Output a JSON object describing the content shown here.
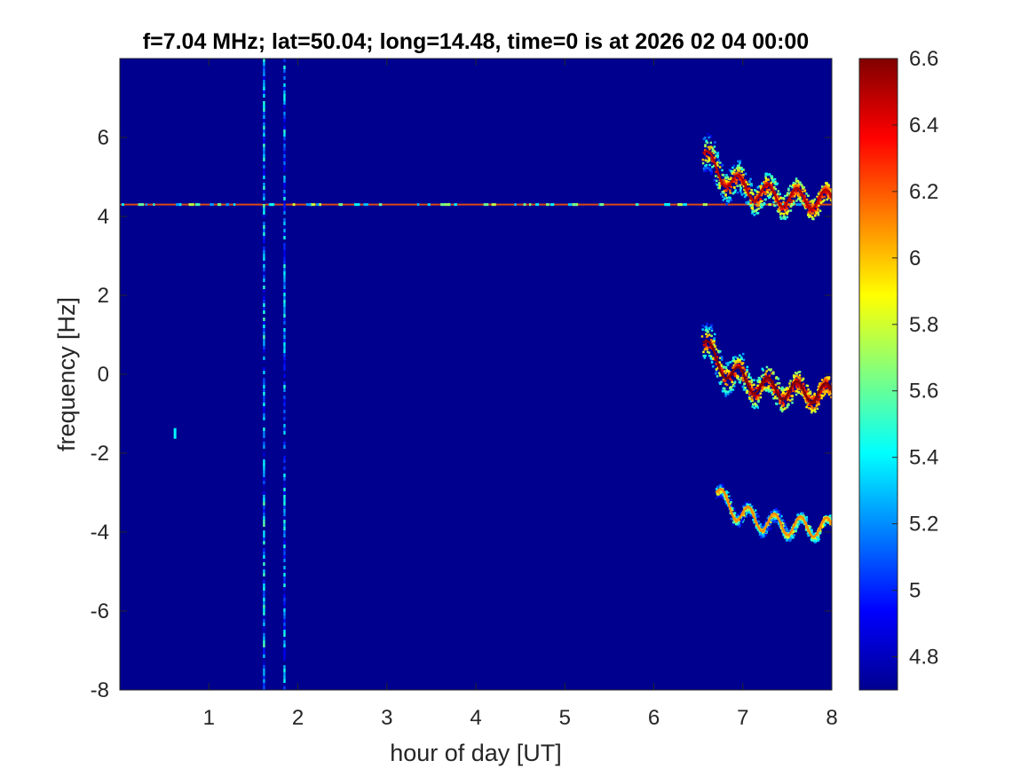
{
  "chart_data": {
    "type": "heatmap",
    "title": "f=7.04 MHz;  lat=50.04; long=14.48, time=0 is at 2026 02 04 00:00",
    "xlabel": "hour of day [UT]",
    "ylabel": "frequency [Hz]",
    "xlim": [
      0,
      8
    ],
    "ylim": [
      -8,
      8
    ],
    "x_ticks": [
      1,
      2,
      3,
      4,
      5,
      6,
      7,
      8
    ],
    "y_ticks": [
      -8,
      -6,
      -4,
      -2,
      0,
      2,
      4,
      6
    ],
    "colorbar": {
      "colormap": "jet",
      "limits": [
        4.7,
        6.6
      ],
      "ticks": [
        4.8,
        5,
        5.2,
        5.4,
        5.6,
        5.8,
        6,
        6.2,
        6.4,
        6.6
      ]
    },
    "background_value": 4.7,
    "features": [
      {
        "kind": "horizontal_line",
        "y": 4.3,
        "x_range": [
          0,
          8
        ],
        "value": 6.2
      },
      {
        "kind": "vertical_line",
        "x": 1.62,
        "y_range": [
          -8,
          8
        ],
        "value": 5.4
      },
      {
        "kind": "vertical_line",
        "x": 1.85,
        "y_range": [
          -8,
          8
        ],
        "value": 5.3
      },
      {
        "kind": "trace",
        "x_range": [
          6.55,
          8
        ],
        "y_start": 5.6,
        "y_end": 4.4,
        "value": 6.5
      },
      {
        "kind": "trace",
        "x_range": [
          6.55,
          8
        ],
        "y_start": 0.8,
        "y_end": -0.5,
        "value": 6.6
      },
      {
        "kind": "trace",
        "x_range": [
          6.7,
          8
        ],
        "y_start": -3.0,
        "y_end": -3.9,
        "value": 6.1
      },
      {
        "kind": "spot",
        "x": 0.62,
        "y": -1.5,
        "value": 5.4
      }
    ]
  }
}
